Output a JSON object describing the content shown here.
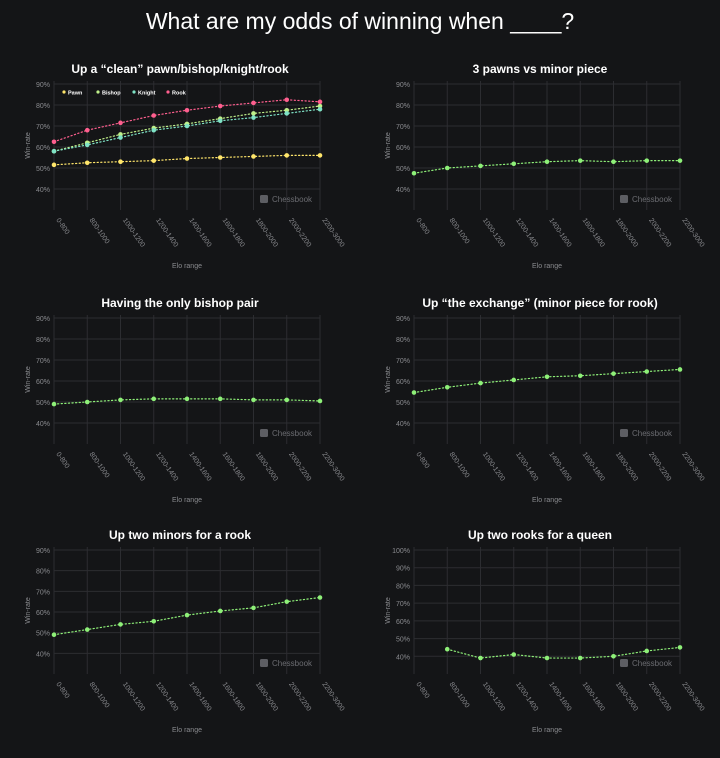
{
  "page_title": "What are my odds of winning when ____?",
  "brand": "Chessbook",
  "colors": {
    "background": "#141517",
    "grid": "#2c2d31",
    "axis_text": "#8a8b8f",
    "pawn": "#ffe66b",
    "bishop": "#bff08a",
    "knight": "#7fe3c6",
    "rook": "#ff5f8f",
    "series_default": "#8ef078"
  },
  "chart_data": [
    {
      "type": "line",
      "title": "Up a “clean” pawn/bishop/knight/rook",
      "xlabel": "Elo range",
      "ylabel": "Win-rate",
      "categories": [
        "0-800",
        "800-1000",
        "1000-1200",
        "1200-1400",
        "1400-1600",
        "1600-1800",
        "1800-2000",
        "2000-2200",
        "2200-3000"
      ],
      "yticks": [
        "90%",
        "80%",
        "70%",
        "60%",
        "50%",
        "40%"
      ],
      "ylim": [
        30,
        90
      ],
      "legend": "top",
      "series": [
        {
          "name": "Pawn",
          "color": "#ffe66b",
          "values": [
            51.5,
            52.5,
            53,
            53.5,
            54.5,
            55,
            55.5,
            56,
            56
          ]
        },
        {
          "name": "Bishop",
          "color": "#bff08a",
          "values": [
            58,
            62,
            66,
            69,
            71,
            73.5,
            76,
            77.5,
            79.5
          ]
        },
        {
          "name": "Knight",
          "color": "#7fe3c6",
          "values": [
            58,
            61,
            64.5,
            68,
            70,
            72.5,
            74,
            76,
            78
          ]
        },
        {
          "name": "Rook",
          "color": "#ff5f8f",
          "values": [
            62.5,
            68,
            71.5,
            75,
            77.5,
            79.5,
            81,
            82.5,
            81.5
          ]
        }
      ]
    },
    {
      "type": "line",
      "title": "3 pawns vs minor piece",
      "xlabel": "Elo range",
      "ylabel": "Win-rate",
      "categories": [
        "0-800",
        "800-1000",
        "1000-1200",
        "1200-1400",
        "1400-1600",
        "1600-1800",
        "1800-2000",
        "2000-2200",
        "2200-3000"
      ],
      "yticks": [
        "90%",
        "80%",
        "70%",
        "60%",
        "50%",
        "40%"
      ],
      "ylim": [
        30,
        90
      ],
      "series": [
        {
          "values": [
            47.5,
            50,
            51,
            52,
            53,
            53.5,
            53,
            53.5,
            53.5
          ]
        }
      ]
    },
    {
      "type": "line",
      "title": "Having the only bishop pair",
      "xlabel": "Elo range",
      "ylabel": "Win-rate",
      "categories": [
        "0-800",
        "800-1000",
        "1000-1200",
        "1200-1400",
        "1400-1600",
        "1600-1800",
        "1800-2000",
        "2000-2200",
        "2200-3000"
      ],
      "yticks": [
        "90%",
        "80%",
        "70%",
        "60%",
        "50%",
        "40%"
      ],
      "ylim": [
        30,
        90
      ],
      "series": [
        {
          "values": [
            49,
            50,
            51,
            51.5,
            51.5,
            51.5,
            51,
            51,
            50.5
          ]
        }
      ]
    },
    {
      "type": "line",
      "title": "Up “the exchange” (minor piece for rook)",
      "xlabel": "Elo range",
      "ylabel": "Win-rate",
      "categories": [
        "0-800",
        "800-1000",
        "1000-1200",
        "1200-1400",
        "1400-1600",
        "1600-1800",
        "1800-2000",
        "2000-2200",
        "2200-3000"
      ],
      "yticks": [
        "90%",
        "80%",
        "70%",
        "60%",
        "50%",
        "40%"
      ],
      "ylim": [
        30,
        90
      ],
      "series": [
        {
          "values": [
            54.5,
            57,
            59,
            60.5,
            62,
            62.5,
            63.5,
            64.5,
            65.5
          ]
        }
      ]
    },
    {
      "type": "line",
      "title": "Up two minors for a rook",
      "xlabel": "Elo range",
      "ylabel": "Win-rate",
      "categories": [
        "0-800",
        "800-1000",
        "1000-1200",
        "1200-1400",
        "1400-1600",
        "1600-1800",
        "1800-2000",
        "2000-2200",
        "2200-3000"
      ],
      "yticks": [
        "90%",
        "80%",
        "70%",
        "60%",
        "50%",
        "40%"
      ],
      "ylim": [
        30,
        90
      ],
      "series": [
        {
          "values": [
            49,
            51.5,
            54,
            55.5,
            58.5,
            60.5,
            62,
            65,
            67
          ]
        }
      ]
    },
    {
      "type": "line",
      "title": "Up two rooks for a queen",
      "xlabel": "Elo range",
      "ylabel": "Win-rate",
      "categories": [
        "0-800",
        "800-1000",
        "1000-1200",
        "1200-1400",
        "1400-1600",
        "1600-1800",
        "1800-2000",
        "2000-2200",
        "2200-3000"
      ],
      "yticks": [
        "100%",
        "90%",
        "80%",
        "70%",
        "60%",
        "50%",
        "40%"
      ],
      "ylim": [
        30,
        100
      ],
      "series": [
        {
          "values": [
            null,
            44,
            39,
            41,
            39,
            39,
            40,
            43,
            45
          ]
        }
      ]
    }
  ]
}
